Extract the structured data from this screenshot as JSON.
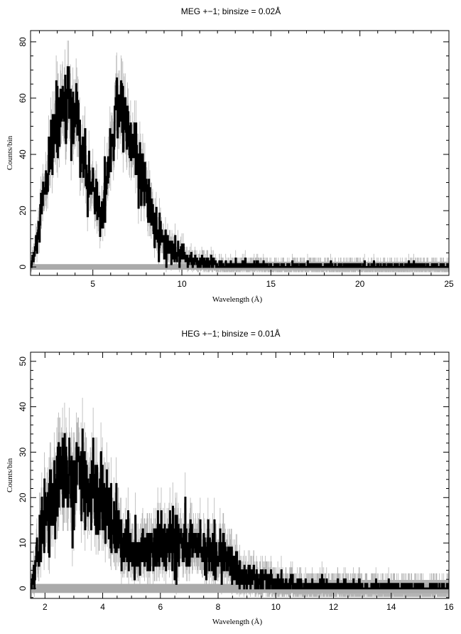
{
  "chart_data": [
    {
      "type": "line",
      "title": "MEG +−1; binsize = 0.02Å",
      "xlabel": "Wavelength (Å)",
      "ylabel": "Counts/bin",
      "xlim": [
        1.5,
        25
      ],
      "ylim": [
        -3,
        84
      ],
      "xticks": [
        5,
        10,
        15,
        20,
        25
      ],
      "yticks": [
        0,
        20,
        40,
        60,
        80
      ],
      "grid": false,
      "legend": "none",
      "colors": {
        "data": "#000000",
        "errorbars": "#b4b4b4",
        "band": "#aaaaaa"
      },
      "series": [
        {
          "x": [
            1.5,
            1.75,
            2.0,
            2.25,
            2.5,
            2.75,
            3.0,
            3.25,
            3.5,
            3.75,
            4.0,
            4.25,
            4.5,
            4.75,
            5.0,
            5.25,
            5.5,
            5.75,
            6.0,
            6.25,
            6.5,
            6.75,
            7.0,
            7.25,
            7.5,
            7.75,
            8.0,
            8.25,
            8.5,
            8.75,
            9.0,
            9.5,
            10.0,
            10.5,
            11.0,
            11.5,
            12.0,
            13.0,
            14.0,
            15.0,
            16.0,
            18.0,
            20.0,
            22.0,
            25.0
          ],
          "y": [
            0,
            5,
            15,
            24,
            34,
            45,
            53,
            56,
            55,
            54,
            52,
            42,
            36,
            30,
            28,
            22,
            18,
            28,
            44,
            54,
            59,
            52,
            48,
            46,
            35,
            30,
            25,
            20,
            15,
            10,
            8,
            5,
            4,
            2.5,
            1.5,
            1,
            0.6,
            0.4,
            0.3,
            0.2,
            0.2,
            0.1,
            0.1,
            0.1,
            0.1
          ]
        }
      ]
    },
    {
      "type": "line",
      "title": "HEG +−1; binsize = 0.01Å",
      "xlabel": "Wavelength (Å)",
      "ylabel": "Counts/bin",
      "xlim": [
        1.5,
        16
      ],
      "ylim": [
        -2.2,
        52
      ],
      "xticks": [
        2,
        4,
        6,
        8,
        10,
        12,
        14,
        16
      ],
      "yticks": [
        0,
        10,
        20,
        30,
        40,
        50
      ],
      "grid": false,
      "legend": "none",
      "colors": {
        "data": "#000000",
        "errorbars": "#b4b4b4",
        "band": "#aaaaaa"
      },
      "series": [
        {
          "x": [
            1.5,
            1.75,
            2.0,
            2.25,
            2.5,
            2.75,
            3.0,
            3.25,
            3.5,
            3.75,
            4.0,
            4.25,
            4.5,
            4.75,
            5.0,
            5.25,
            5.5,
            5.75,
            6.0,
            6.25,
            6.5,
            6.75,
            7.0,
            7.25,
            7.5,
            7.75,
            8.0,
            8.25,
            8.5,
            8.75,
            9.0,
            9.5,
            10.0,
            10.5,
            11.0,
            12.0,
            13.0,
            14.0,
            15.0,
            16.0
          ],
          "y": [
            0,
            6,
            16,
            21,
            24,
            25,
            25,
            24,
            23,
            21,
            19,
            15,
            11,
            9,
            8,
            8,
            8,
            8.5,
            9,
            10,
            11,
            10.5,
            10,
            9,
            8,
            7.5,
            7,
            6.5,
            5,
            4,
            3,
            2,
            1,
            0.8,
            0.5,
            0.3,
            0.2,
            0.1,
            0.1,
            0.1
          ]
        }
      ]
    }
  ]
}
